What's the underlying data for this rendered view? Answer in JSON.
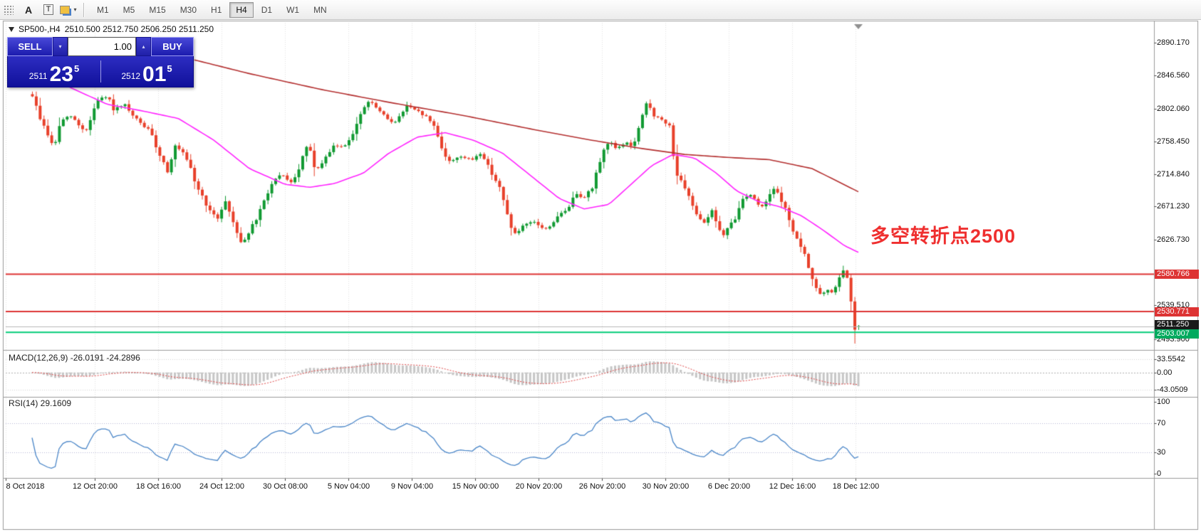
{
  "toolbar": {
    "a_label": "A",
    "t_label": "T",
    "timeframes": [
      "M1",
      "M5",
      "M15",
      "M30",
      "H1",
      "H4",
      "D1",
      "W1",
      "MN"
    ],
    "active_timeframe": "H4"
  },
  "chart": {
    "caption_symbol": "SP500-,H4",
    "caption_ohlc": "2510.500 2512.750 2506.250 2511.250"
  },
  "one_click": {
    "sell_label": "SELL",
    "buy_label": "BUY",
    "volume": "1.00",
    "bid": {
      "prefix": "2511",
      "big": "23",
      "sup": "5"
    },
    "ask": {
      "prefix": "2512",
      "big": "01",
      "sup": "5"
    }
  },
  "annotation": {
    "text": "多空转折点2500",
    "color": "#ef2f2f"
  },
  "macd": {
    "header": "MACD(12,26,9) -26.0191 -24.2896",
    "axis": [
      {
        "text": "33.5542",
        "value": 33.5542
      },
      {
        "text": "0.00",
        "value": 0
      },
      {
        "text": "-43.0509",
        "value": -43.0509
      }
    ],
    "bar_color": "#c6c6c6",
    "signal_color": "#e04545"
  },
  "rsi": {
    "header": "RSI(14) 29.1609",
    "axis": [
      {
        "text": "100",
        "value": 100
      },
      {
        "text": "70",
        "value": 70
      },
      {
        "text": "30",
        "value": 30
      },
      {
        "text": "0",
        "value": 0
      }
    ],
    "line_color": "#4a86c8"
  },
  "price_axis": {
    "ticks": [
      2890.17,
      2846.56,
      2802.06,
      2758.45,
      2714.84,
      2671.23,
      2626.73,
      2539.51,
      2493.9
    ],
    "badges": [
      {
        "text": "2580.766",
        "value": 2580.766,
        "bg": "#dd3333"
      },
      {
        "text": "2530.771",
        "value": 2530.771,
        "bg": "#dd3333"
      },
      {
        "text": "2511.250",
        "value": 2511.25,
        "bg": "#1a1a1a"
      },
      {
        "text": "2503.007",
        "value": 2503.007,
        "bg": "#00aa5e"
      }
    ]
  },
  "time_axis": [
    "8 Oct 2018",
    "12 Oct 20:00",
    "18 Oct 16:00",
    "24 Oct 12:00",
    "30 Oct 08:00",
    "5 Nov 04:00",
    "9 Nov 04:00",
    "15 Nov 00:00",
    "20 Nov 20:00",
    "26 Nov 20:00",
    "30 Nov 20:00",
    "6 Dec 20:00",
    "12 Dec 16:00",
    "18 Dec 12:00"
  ],
  "chart_data": {
    "type": "candlestick",
    "symbol": "SP500-",
    "timeframe": "H4",
    "current_bar": {
      "open": 2510.5,
      "high": 2512.75,
      "low": 2506.25,
      "close": 2511.25
    },
    "price_range": [
      2479.5,
      2917
    ],
    "candle_count": 215,
    "seed": 9,
    "up_color": "#119a32",
    "down_color": "#e8402a",
    "price_path": [
      [
        0.0,
        2820
      ],
      [
        0.009,
        2790
      ],
      [
        0.017,
        2772
      ],
      [
        0.026,
        2748
      ],
      [
        0.034,
        2785
      ],
      [
        0.047,
        2792
      ],
      [
        0.056,
        2780
      ],
      [
        0.065,
        2772
      ],
      [
        0.078,
        2812
      ],
      [
        0.091,
        2818
      ],
      [
        0.099,
        2800
      ],
      [
        0.112,
        2806
      ],
      [
        0.121,
        2792
      ],
      [
        0.134,
        2780
      ],
      [
        0.142,
        2772
      ],
      [
        0.151,
        2748
      ],
      [
        0.164,
        2718
      ],
      [
        0.172,
        2752
      ],
      [
        0.181,
        2744
      ],
      [
        0.19,
        2726
      ],
      [
        0.198,
        2700
      ],
      [
        0.207,
        2682
      ],
      [
        0.216,
        2662
      ],
      [
        0.224,
        2655
      ],
      [
        0.233,
        2680
      ],
      [
        0.246,
        2642
      ],
      [
        0.254,
        2620
      ],
      [
        0.263,
        2640
      ],
      [
        0.272,
        2655
      ],
      [
        0.28,
        2678
      ],
      [
        0.289,
        2700
      ],
      [
        0.297,
        2710
      ],
      [
        0.306,
        2712
      ],
      [
        0.315,
        2700
      ],
      [
        0.323,
        2724
      ],
      [
        0.334,
        2757
      ],
      [
        0.341,
        2722
      ],
      [
        0.349,
        2726
      ],
      [
        0.358,
        2740
      ],
      [
        0.366,
        2754
      ],
      [
        0.375,
        2750
      ],
      [
        0.384,
        2762
      ],
      [
        0.392,
        2780
      ],
      [
        0.405,
        2812
      ],
      [
        0.414,
        2806
      ],
      [
        0.427,
        2790
      ],
      [
        0.44,
        2784
      ],
      [
        0.453,
        2806
      ],
      [
        0.461,
        2800
      ],
      [
        0.474,
        2794
      ],
      [
        0.487,
        2778
      ],
      [
        0.496,
        2748
      ],
      [
        0.504,
        2730
      ],
      [
        0.517,
        2740
      ],
      [
        0.53,
        2732
      ],
      [
        0.543,
        2744
      ],
      [
        0.552,
        2724
      ],
      [
        0.565,
        2698
      ],
      [
        0.578,
        2648
      ],
      [
        0.584,
        2634
      ],
      [
        0.595,
        2645
      ],
      [
        0.608,
        2650
      ],
      [
        0.621,
        2640
      ],
      [
        0.634,
        2655
      ],
      [
        0.647,
        2668
      ],
      [
        0.659,
        2690
      ],
      [
        0.666,
        2684
      ],
      [
        0.677,
        2694
      ],
      [
        0.69,
        2745
      ],
      [
        0.7,
        2760
      ],
      [
        0.707,
        2746
      ],
      [
        0.718,
        2758
      ],
      [
        0.727,
        2750
      ],
      [
        0.735,
        2780
      ],
      [
        0.744,
        2812
      ],
      [
        0.753,
        2792
      ],
      [
        0.763,
        2785
      ],
      [
        0.772,
        2778
      ],
      [
        0.778,
        2718
      ],
      [
        0.787,
        2700
      ],
      [
        0.796,
        2680
      ],
      [
        0.804,
        2662
      ],
      [
        0.813,
        2650
      ],
      [
        0.822,
        2666
      ],
      [
        0.83,
        2645
      ],
      [
        0.835,
        2630
      ],
      [
        0.842,
        2642
      ],
      [
        0.851,
        2656
      ],
      [
        0.86,
        2682
      ],
      [
        0.868,
        2690
      ],
      [
        0.875,
        2678
      ],
      [
        0.884,
        2670
      ],
      [
        0.892,
        2690
      ],
      [
        0.899,
        2694
      ],
      [
        0.908,
        2675
      ],
      [
        0.916,
        2655
      ],
      [
        0.923,
        2630
      ],
      [
        0.932,
        2614
      ],
      [
        0.941,
        2584
      ],
      [
        0.947,
        2566
      ],
      [
        0.954,
        2552
      ],
      [
        0.961,
        2558
      ],
      [
        0.968,
        2556
      ],
      [
        0.975,
        2572
      ],
      [
        0.982,
        2586
      ],
      [
        0.987,
        2574
      ],
      [
        0.992,
        2530
      ],
      [
        0.997,
        2496
      ],
      [
        1.0,
        2511.25
      ]
    ],
    "ma_fast": {
      "name": "MA fast",
      "color": "#ff25ff",
      "points": [
        [
          0.009,
          2862
        ],
        [
          0.047,
          2830
        ],
        [
          0.091,
          2808
        ],
        [
          0.134,
          2799
        ],
        [
          0.177,
          2789
        ],
        [
          0.22,
          2760
        ],
        [
          0.263,
          2722
        ],
        [
          0.306,
          2701
        ],
        [
          0.336,
          2697
        ],
        [
          0.366,
          2702
        ],
        [
          0.401,
          2716
        ],
        [
          0.431,
          2742
        ],
        [
          0.466,
          2764
        ],
        [
          0.5,
          2770
        ],
        [
          0.534,
          2760
        ],
        [
          0.569,
          2743
        ],
        [
          0.603,
          2713
        ],
        [
          0.638,
          2682
        ],
        [
          0.668,
          2668
        ],
        [
          0.698,
          2674
        ],
        [
          0.724,
          2700
        ],
        [
          0.75,
          2726
        ],
        [
          0.776,
          2741
        ],
        [
          0.802,
          2736
        ],
        [
          0.828,
          2716
        ],
        [
          0.853,
          2692
        ],
        [
          0.879,
          2678
        ],
        [
          0.905,
          2671
        ],
        [
          0.931,
          2659
        ],
        [
          0.957,
          2640
        ],
        [
          0.983,
          2619
        ],
        [
          1.0,
          2610
        ]
      ]
    },
    "ma_slow": {
      "name": "MA slow",
      "color": "#b43030",
      "points": [
        [
          0.194,
          2868
        ],
        [
          0.263,
          2849
        ],
        [
          0.349,
          2828
        ],
        [
          0.435,
          2810
        ],
        [
          0.522,
          2793
        ],
        [
          0.608,
          2774
        ],
        [
          0.677,
          2760
        ],
        [
          0.737,
          2749
        ],
        [
          0.789,
          2741
        ],
        [
          0.841,
          2737
        ],
        [
          0.892,
          2734
        ],
        [
          0.944,
          2722
        ],
        [
          1.0,
          2691
        ]
      ]
    },
    "hlines": [
      {
        "price": 2580.766,
        "color": "#dd3333",
        "width": 2
      },
      {
        "price": 2530.771,
        "color": "#dd3333",
        "width": 2
      },
      {
        "price": 2503.007,
        "color": "#00cc77",
        "width": 2
      }
    ],
    "bid_line": {
      "price": 2511.25,
      "color": "#b8b8b8"
    },
    "macd_range": [
      -50,
      42
    ],
    "macd_levels": [
      33.5542,
      -43.0509
    ],
    "rsi_range": [
      0,
      100
    ],
    "rsi_levels": [
      70,
      30
    ]
  }
}
